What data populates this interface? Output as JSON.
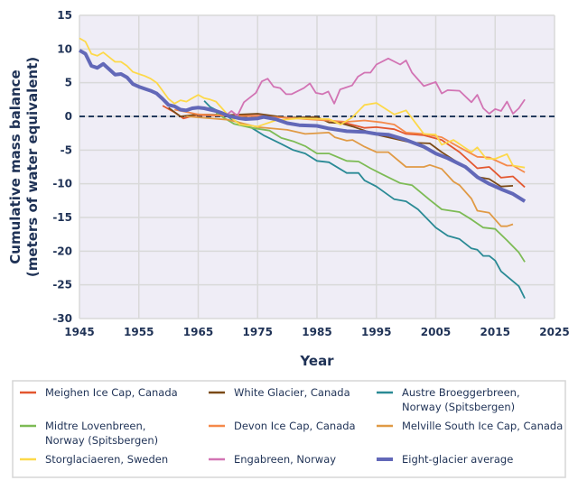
{
  "chart_data": {
    "type": "line",
    "title": "",
    "xlabel": "Year",
    "ylabel_lines": [
      "Cumulative mass balance",
      "(meters of water equivalent)"
    ],
    "xlim": [
      1945,
      2025
    ],
    "ylim": [
      -30,
      15
    ],
    "xticks": [
      1945,
      1955,
      1965,
      1975,
      1985,
      1995,
      2005,
      2015,
      2025
    ],
    "yticks": [
      15,
      10,
      5,
      0,
      -5,
      -10,
      -15,
      -20,
      -25,
      -30
    ],
    "grid": true,
    "zero_line": "dashed",
    "legend_position": "bottom",
    "series": [
      {
        "name": "Meighen Ice Cap, Canada",
        "color": "#e3572f",
        "x": [
          1959,
          1961,
          1962.5,
          1964.6,
          1970,
          1975,
          1980,
          1985,
          1989,
          1993,
          1995,
          1998,
          2000,
          2003,
          2006,
          2009,
          2012,
          2014,
          2016,
          2018,
          2020
        ],
        "y": [
          1.6,
          0.6,
          -0.3,
          0.2,
          0.1,
          0.1,
          -0.2,
          -0.4,
          -0.8,
          -1.7,
          -1.6,
          -1.9,
          -2.6,
          -2.8,
          -3.5,
          -5.3,
          -7.7,
          -7.5,
          -9.1,
          -8.9,
          -10.5
        ]
      },
      {
        "name": "White Glacier, Canada",
        "color": "#7a4a17",
        "x": [
          1960,
          1962,
          1965,
          1970,
          1975,
          1980,
          1985,
          1987,
          1989,
          1991,
          1995,
          2001,
          2004,
          2006,
          2009,
          2012,
          2014,
          2016,
          2018
        ],
        "y": [
          1.3,
          0.0,
          0.3,
          0.2,
          0.4,
          -0.2,
          -0.1,
          -0.9,
          -1.0,
          -1.5,
          -2.7,
          -3.9,
          -4.0,
          -5.3,
          -7.0,
          -9.0,
          -9.3,
          -10.4,
          -10.3
        ]
      },
      {
        "name": "Austre Broeggerbreen, Norway (Spitsbergen)",
        "color": "#2a8a95",
        "x": [
          1966,
          1967,
          1969,
          1971,
          1974,
          1976,
          1979,
          1981,
          1983,
          1985,
          1987,
          1990,
          1992,
          1993,
          1995,
          1998,
          2000,
          2002,
          2005,
          2007,
          2009,
          2011,
          2012,
          2013,
          2014,
          2015,
          2016,
          2019,
          2020
        ],
        "y": [
          2.3,
          1.4,
          0.5,
          -0.6,
          -1.7,
          -2.8,
          -4.1,
          -5.0,
          -5.5,
          -6.6,
          -6.8,
          -8.4,
          -8.4,
          -9.5,
          -10.4,
          -12.3,
          -12.6,
          -13.8,
          -16.5,
          -17.7,
          -18.2,
          -19.6,
          -19.8,
          -20.7,
          -20.7,
          -21.4,
          -23.0,
          -25.2,
          -27.0
        ]
      },
      {
        "name": "Midtre Lovenbreen, Norway (Spitsbergen)",
        "color": "#7dbb55",
        "x": [
          1968,
          1971,
          1974,
          1977,
          1979,
          1981,
          1983,
          1985,
          1987,
          1990,
          1992,
          1994,
          1996,
          1999,
          2001,
          2004,
          2006,
          2009,
          2011,
          2013,
          2015,
          2017,
          2019,
          2020
        ],
        "y": [
          0.5,
          -1.1,
          -1.7,
          -2.1,
          -3.2,
          -3.7,
          -4.4,
          -5.5,
          -5.5,
          -6.6,
          -6.7,
          -7.7,
          -8.6,
          -9.9,
          -10.2,
          -12.4,
          -13.8,
          -14.2,
          -15.3,
          -16.5,
          -16.7,
          -18.4,
          -20.2,
          -21.6
        ]
      },
      {
        "name": "Devon Ice Cap, Canada",
        "color": "#f5894a",
        "x": [
          1961,
          1965,
          1970,
          1975,
          1980,
          1983,
          1990,
          1993,
          1996,
          1998,
          2000,
          2003,
          2006,
          2009,
          2012,
          2014,
          2017,
          2018,
          2020
        ],
        "y": [
          1.0,
          0.3,
          0.1,
          0.0,
          -0.2,
          -0.4,
          -0.8,
          -0.6,
          -0.9,
          -1.2,
          -2.4,
          -2.6,
          -3.1,
          -4.6,
          -6.0,
          -6.1,
          -7.3,
          -7.3,
          -8.3
        ]
      },
      {
        "name": "Melville South Ice Cap, Canada",
        "color": "#e09a45",
        "x": [
          1963,
          1970,
          1975,
          1980,
          1983,
          1987,
          1988,
          1990,
          1991,
          1993,
          1995,
          1997,
          2000,
          2003,
          2004,
          2006,
          2008,
          2009,
          2011,
          2012,
          2014,
          2016,
          2017,
          2018
        ],
        "y": [
          0.0,
          -0.5,
          -1.6,
          -2.0,
          -2.6,
          -2.4,
          -3.1,
          -3.6,
          -3.5,
          -4.5,
          -5.3,
          -5.3,
          -7.5,
          -7.5,
          -7.2,
          -7.8,
          -9.7,
          -10.2,
          -12.2,
          -14.0,
          -14.3,
          -16.3,
          -16.3,
          -16.0
        ]
      },
      {
        "name": "Storglaciaeren, Sweden",
        "color": "#fdd94a",
        "x": [
          1945,
          1946,
          1947,
          1948,
          1949,
          1950,
          1951,
          1952,
          1953,
          1954,
          1955,
          1956,
          1957,
          1958,
          1959,
          1960,
          1961,
          1962,
          1963,
          1964,
          1965,
          1966,
          1967,
          1968,
          1969,
          1970,
          1972,
          1975,
          1978,
          1982,
          1987,
          1989,
          1991,
          1993,
          1995,
          1998,
          2000,
          2003,
          2005,
          2006,
          2008,
          2011,
          2012,
          2013.5,
          2015,
          2017,
          2018,
          2020
        ],
        "y": [
          11.6,
          11.1,
          9.3,
          9.0,
          9.5,
          8.8,
          8.1,
          8.1,
          7.5,
          6.6,
          6.3,
          6.0,
          5.6,
          5.0,
          3.8,
          2.6,
          1.9,
          2.4,
          2.2,
          2.7,
          3.2,
          2.7,
          2.5,
          2.2,
          1.2,
          0.2,
          -1.2,
          -1.5,
          -0.6,
          -0.3,
          -0.4,
          -1.2,
          -0.1,
          1.7,
          2.0,
          0.3,
          0.9,
          -2.6,
          -2.7,
          -4.2,
          -3.5,
          -5.3,
          -4.6,
          -6.3,
          -6.3,
          -5.6,
          -7.3,
          -7.6
        ]
      },
      {
        "name": "Engabreen, Norway",
        "color": "#d274b4",
        "x": [
          1969.6,
          1970.6,
          1971.6,
          1972.7,
          1974.7,
          1975.7,
          1976.7,
          1977.7,
          1978.8,
          1979.8,
          1980.7,
          1982.8,
          1983.8,
          1984.8,
          1985.9,
          1986.9,
          1987.9,
          1988.9,
          1990.9,
          1991.9,
          1993,
          1994,
          1995,
          1997,
          1999,
          2000,
          2001,
          2003,
          2005,
          2006,
          2007,
          2009,
          2011,
          2012,
          2013,
          2014,
          2015,
          2016,
          2017,
          2018,
          2019,
          2020
        ],
        "y": [
          0.1,
          0.8,
          0.1,
          2.1,
          3.5,
          5.2,
          5.6,
          4.4,
          4.2,
          3.3,
          3.3,
          4.2,
          4.9,
          3.5,
          3.3,
          3.7,
          1.9,
          4.0,
          4.6,
          5.9,
          6.5,
          6.5,
          7.7,
          8.6,
          7.7,
          8.3,
          6.5,
          4.5,
          5.1,
          3.4,
          3.9,
          3.8,
          2.1,
          3.2,
          1.2,
          0.4,
          1.1,
          0.8,
          2.2,
          0.4,
          1.2,
          2.5
        ]
      },
      {
        "name": "Eight-glacier average",
        "color": "#6268b8",
        "x": [
          1945,
          1946,
          1947,
          1948,
          1949,
          1950,
          1951,
          1952,
          1953,
          1954,
          1955,
          1956,
          1957,
          1958,
          1959,
          1960,
          1961,
          1962,
          1963,
          1964,
          1965,
          1966,
          1967,
          1968,
          1969,
          1970,
          1972,
          1973,
          1975,
          1976,
          1978,
          1980,
          1982,
          1985,
          1987,
          1990,
          1993,
          1995,
          1997,
          2000,
          2003,
          2005,
          2007,
          2010,
          2012,
          2014,
          2016,
          2018,
          2020
        ],
        "y": [
          9.8,
          9.3,
          7.5,
          7.2,
          7.8,
          7.0,
          6.2,
          6.3,
          5.8,
          4.8,
          4.4,
          4.1,
          3.8,
          3.4,
          2.6,
          1.7,
          1.5,
          1.0,
          0.9,
          1.2,
          1.3,
          1.2,
          1.0,
          0.8,
          0.5,
          0.1,
          -0.3,
          -0.4,
          -0.3,
          -0.1,
          -0.4,
          -1.0,
          -1.3,
          -1.4,
          -1.8,
          -2.2,
          -2.3,
          -2.6,
          -2.7,
          -3.5,
          -4.5,
          -5.5,
          -6.2,
          -7.5,
          -9.0,
          -10.0,
          -10.8,
          -11.5,
          -12.6
        ]
      }
    ]
  }
}
